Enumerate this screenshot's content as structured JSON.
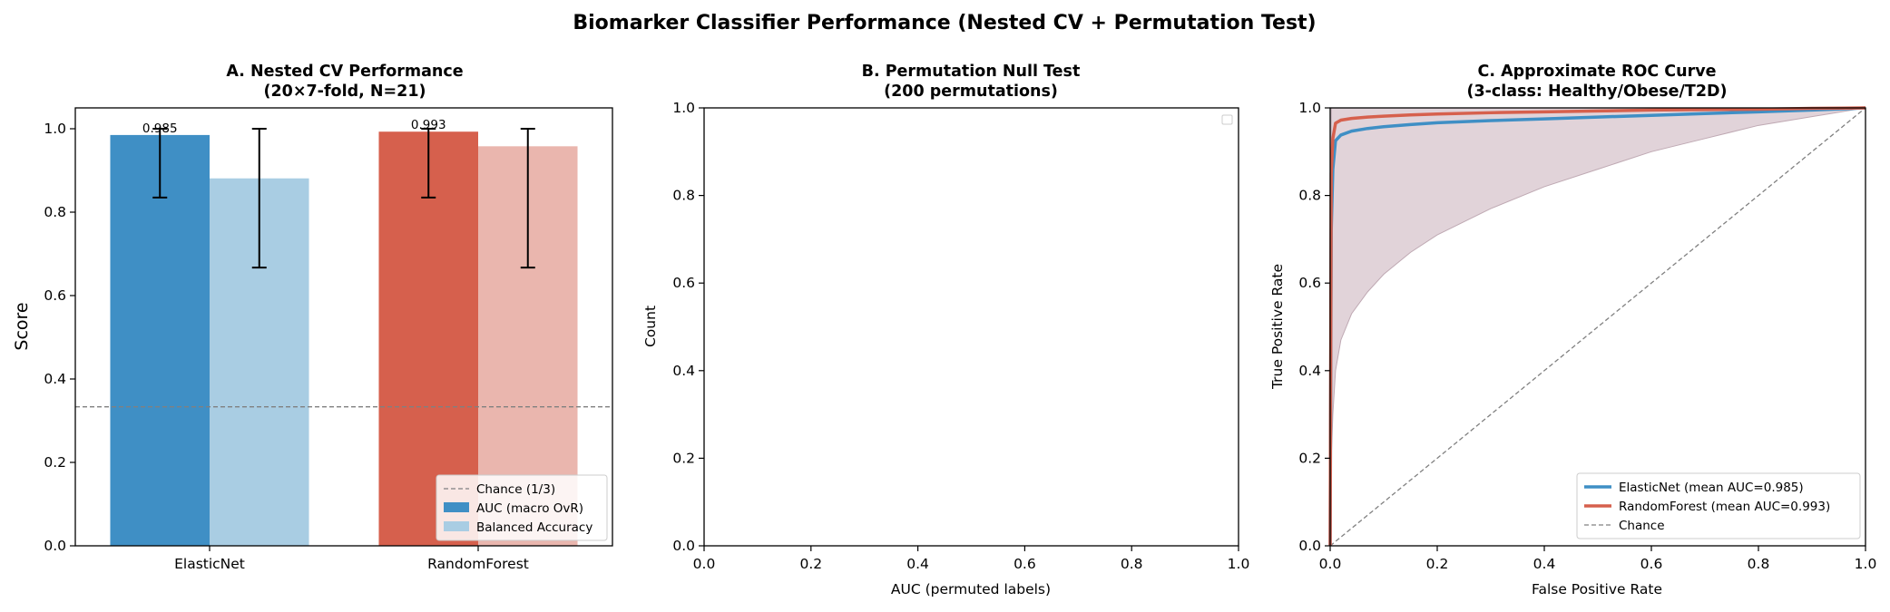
{
  "figure_title": "Biomarker Classifier Performance (Nested CV + Permutation Test)",
  "colors": {
    "elasticnet": "#3f8fc5",
    "elasticnet_light": "#a9cde3",
    "randomforest": "#d6604d",
    "randomforest_light": "#eab6ae",
    "chance": "#808080",
    "band": "#d9c8cf"
  },
  "chart_data": [
    {
      "type": "bar",
      "title_line1": "A. Nested CV Performance",
      "title_line2": "(20×7-fold, N=21)",
      "ylabel": "Score",
      "ylim": [
        0,
        1.05
      ],
      "yticks": [
        "0.0",
        "0.2",
        "0.4",
        "0.6",
        "0.8",
        "1.0"
      ],
      "categories": [
        "ElasticNet",
        "RandomForest"
      ],
      "series": [
        {
          "name": "AUC (macro OvR)",
          "values": [
            0.985,
            0.993
          ],
          "err_low": [
            0.835,
            0.835
          ],
          "err_high": [
            1.0,
            1.0
          ],
          "labels": [
            "0.985",
            "0.993"
          ]
        },
        {
          "name": "Balanced Accuracy",
          "values": [
            0.881,
            0.958
          ],
          "err_low": [
            0.667,
            0.667
          ],
          "err_high": [
            1.0,
            1.0
          ]
        }
      ],
      "chance": {
        "name": "Chance (1/3)",
        "value": 0.3333
      },
      "legend_position": "lower-right"
    },
    {
      "type": "histogram",
      "title_line1": "B. Permutation Null Test",
      "title_line2": "(200 permutations)",
      "xlabel": "AUC (permuted labels)",
      "ylabel": "Count",
      "xlim": [
        0,
        1
      ],
      "ylim": [
        0,
        1
      ],
      "xticks": [
        "0.0",
        "0.2",
        "0.4",
        "0.6",
        "0.8",
        "1.0"
      ],
      "yticks": [
        "0.0",
        "0.2",
        "0.4",
        "0.6",
        "0.8",
        "1.0"
      ],
      "series": [],
      "legend_position": "upper-right"
    },
    {
      "type": "line",
      "title_line1": "C. Approximate ROC Curve",
      "title_line2": "(3-class: Healthy/Obese/T2D)",
      "xlabel": "False Positive Rate",
      "ylabel": "True Positive Rate",
      "xlim": [
        0,
        1
      ],
      "ylim": [
        0,
        1
      ],
      "xticks": [
        "0.0",
        "0.2",
        "0.4",
        "0.6",
        "0.8",
        "1.0"
      ],
      "yticks": [
        "0.0",
        "0.2",
        "0.4",
        "0.6",
        "0.8",
        "1.0"
      ],
      "series": [
        {
          "name": "ElasticNet (mean AUC=0.985)",
          "x": [
            0,
            0.002,
            0.005,
            0.01,
            0.02,
            0.04,
            0.07,
            0.1,
            0.15,
            0.2,
            0.3,
            0.4,
            0.5,
            0.6,
            0.7,
            0.8,
            0.9,
            1.0
          ],
          "y": [
            0,
            0.72,
            0.86,
            0.925,
            0.938,
            0.947,
            0.953,
            0.957,
            0.962,
            0.966,
            0.971,
            0.975,
            0.979,
            0.983,
            0.987,
            0.991,
            0.995,
            1.0
          ]
        },
        {
          "name": "RandomForest (mean AUC=0.993)",
          "x": [
            0,
            0.002,
            0.005,
            0.01,
            0.02,
            0.04,
            0.07,
            0.1,
            0.15,
            0.2,
            0.3,
            0.4,
            0.5,
            0.6,
            0.7,
            0.8,
            0.9,
            1.0
          ],
          "y": [
            0,
            0.85,
            0.93,
            0.965,
            0.972,
            0.976,
            0.979,
            0.981,
            0.984,
            0.986,
            0.989,
            0.991,
            0.993,
            0.995,
            0.996,
            0.997,
            0.999,
            1.0
          ]
        },
        {
          "name": "Chance",
          "x": [
            0,
            1
          ],
          "y": [
            0,
            1
          ]
        }
      ],
      "band": {
        "x": [
          0,
          0.002,
          0.005,
          0.01,
          0.02,
          0.04,
          0.07,
          0.1,
          0.15,
          0.2,
          0.3,
          0.4,
          0.5,
          0.6,
          0.7,
          0.8,
          0.9,
          1.0
        ],
        "lower": [
          0,
          0.2,
          0.3,
          0.4,
          0.47,
          0.53,
          0.58,
          0.62,
          0.67,
          0.71,
          0.77,
          0.82,
          0.86,
          0.9,
          0.93,
          0.96,
          0.98,
          1.0
        ],
        "upper": [
          0,
          1.0,
          1.0,
          1.0,
          1.0,
          1.0,
          1.0,
          1.0,
          1.0,
          1.0,
          1.0,
          1.0,
          1.0,
          1.0,
          1.0,
          1.0,
          1.0,
          1.0
        ]
      },
      "legend_position": "lower-right"
    }
  ]
}
